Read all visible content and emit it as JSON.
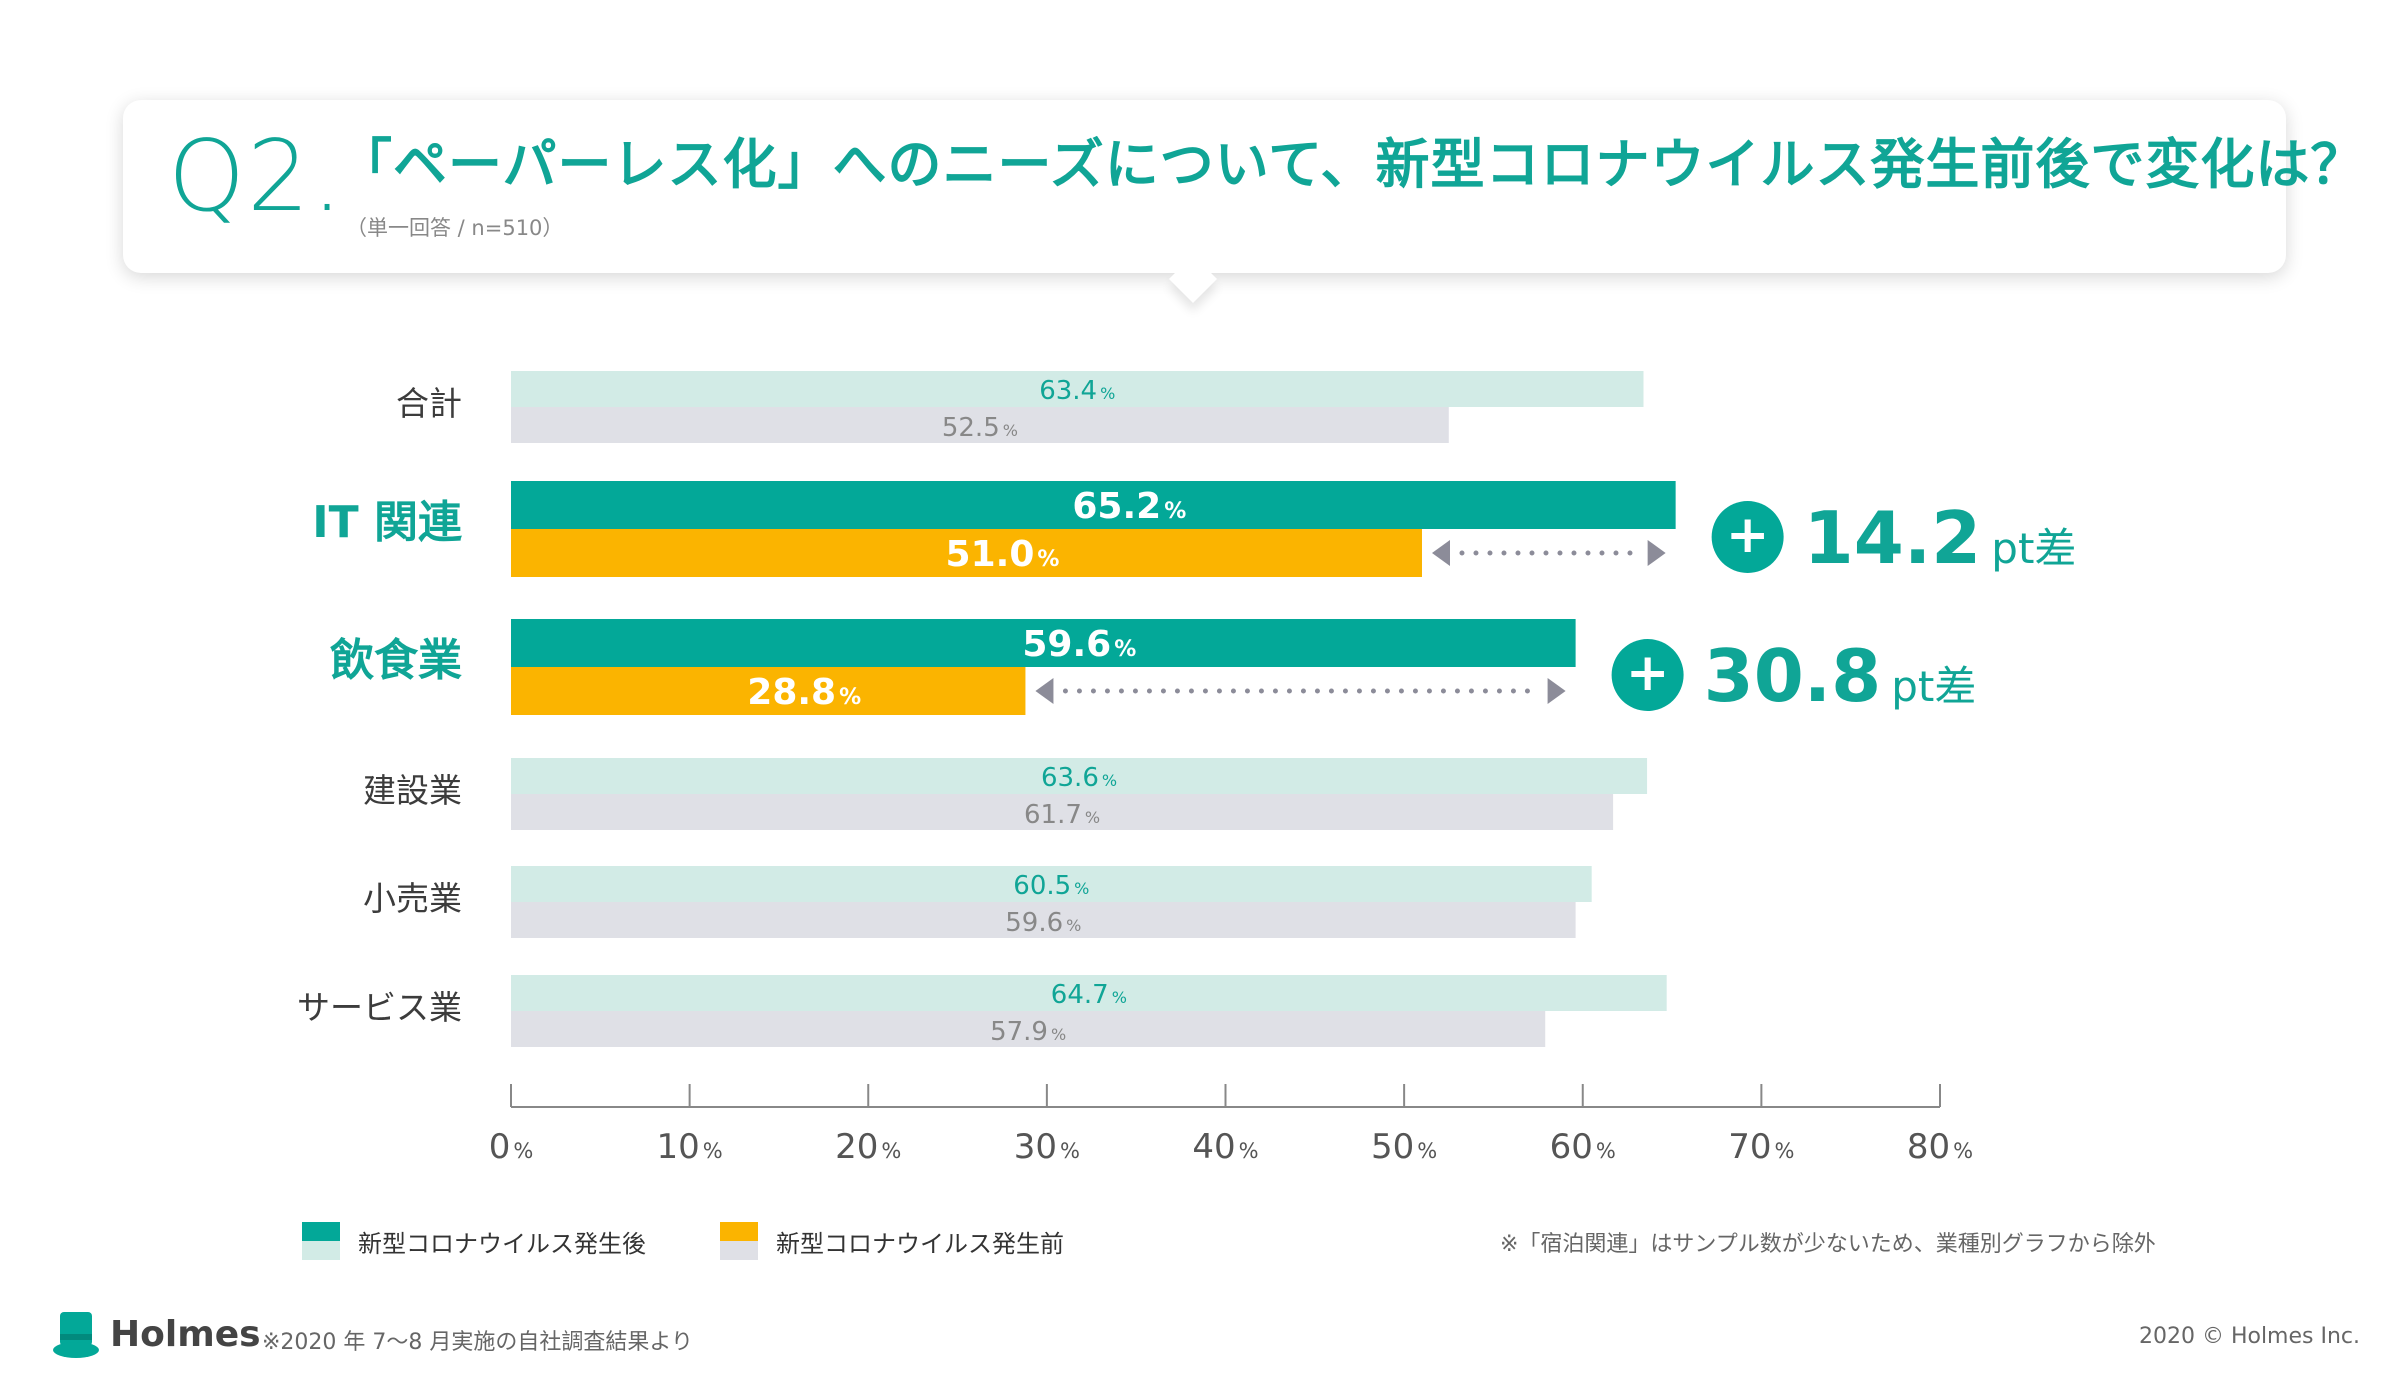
{
  "header": {
    "q_number": "Q2.",
    "title": "「ペーパーレス化」へのニーズについて、新型コロナウイルス発生前後で変化は？",
    "note": "（単一回答 / n=510）"
  },
  "chart_data": {
    "type": "bar",
    "orientation": "horizontal",
    "categories": [
      "合計",
      "IT 関連",
      "飲食業",
      "建設業",
      "小売業",
      "サービス業"
    ],
    "highlighted": [
      "IT 関連",
      "飲食業"
    ],
    "series": [
      {
        "name": "新型コロナウイルス発生後",
        "values": [
          63.4,
          65.2,
          59.6,
          63.6,
          60.5,
          64.7
        ]
      },
      {
        "name": "新型コロナウイルス発生前",
        "values": [
          52.5,
          51.0,
          28.8,
          61.7,
          59.6,
          57.9
        ]
      }
    ],
    "value_labels": {
      "after": [
        "63.4",
        "65.2",
        "59.6",
        "63.6",
        "60.5",
        "64.7"
      ],
      "before": [
        "52.5",
        "51.0",
        "28.8",
        "61.7",
        "59.6",
        "57.9"
      ],
      "unit": "%"
    },
    "xlim": [
      0,
      80
    ],
    "xticks": [
      0,
      10,
      20,
      30,
      40,
      50,
      60,
      70,
      80
    ],
    "tick_unit": "%",
    "annotations": [
      {
        "category": "IT 関連",
        "plus": "+",
        "value": "14.2",
        "unit": "pt差"
      },
      {
        "category": "飲食業",
        "plus": "+",
        "value": "30.8",
        "unit": "pt差"
      }
    ],
    "colors": {
      "after_highlight": "#03a898",
      "before_highlight": "#fbb400",
      "after_muted": "#d2ebe6",
      "before_muted": "#dfe0e6",
      "accent_text": "#10a596",
      "muted_text": "#888888",
      "arrow": "#8c8c99"
    }
  },
  "legend": {
    "after_label": "新型コロナウイルス発生後",
    "before_label": "新型コロナウイルス発生前"
  },
  "footnote": "※「宿泊関連」はサンプル数が少ないため、業種別グラフから除外",
  "footer": {
    "brand": "Holmes",
    "source": "※2020 年 7〜8 月実施の自社調査結果より",
    "copyright": "2020 © Holmes Inc."
  }
}
